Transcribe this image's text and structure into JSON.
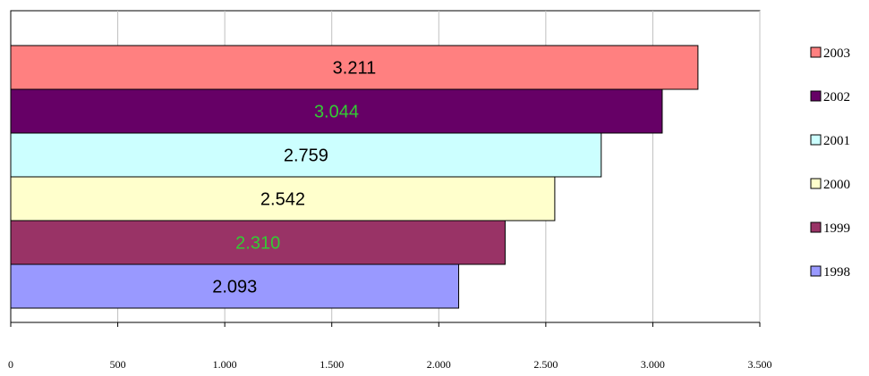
{
  "chart_data": {
    "type": "bar",
    "orientation": "horizontal",
    "title": "",
    "xlabel": "",
    "ylabel": "",
    "xlim": [
      0,
      3500
    ],
    "x_ticks": [
      0,
      500,
      1000,
      1500,
      2000,
      2500,
      3000,
      3500
    ],
    "x_tick_labels": [
      "0",
      "500",
      "1.000",
      "1.500",
      "2.000",
      "2.500",
      "3.000",
      "3.500"
    ],
    "grid": "vertical",
    "legend_position": "right",
    "series": [
      {
        "name": "1998",
        "value": 2093,
        "label": "2.093",
        "color": "#9999ff",
        "label_color": "#000000"
      },
      {
        "name": "1999",
        "value": 2310,
        "label": "2.310",
        "color": "#993366",
        "label_color": "#33cc33"
      },
      {
        "name": "2000",
        "value": 2542,
        "label": "2.542",
        "color": "#ffffcc",
        "label_color": "#000000"
      },
      {
        "name": "2001",
        "value": 2759,
        "label": "2.759",
        "color": "#ccffff",
        "label_color": "#000000"
      },
      {
        "name": "2002",
        "value": 3044,
        "label": "3.044",
        "color": "#660066",
        "label_color": "#33cc33"
      },
      {
        "name": "2003",
        "value": 3211,
        "label": "3.211",
        "color": "#ff8080",
        "label_color": "#000000"
      }
    ]
  }
}
